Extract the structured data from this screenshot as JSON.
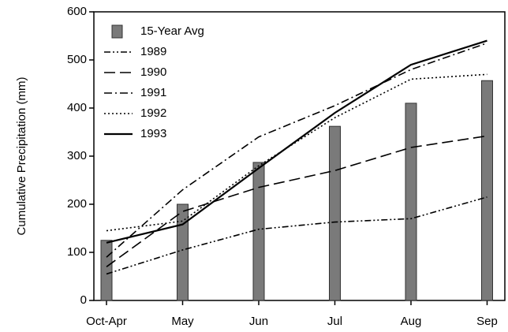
{
  "chart_data": {
    "type": "combo",
    "y_label": "Cumulative Precipitation (mm)",
    "categories": [
      "Oct-Apr",
      "May",
      "Jun",
      "Jul",
      "Aug",
      "Sep"
    ],
    "ylim": [
      0,
      600
    ],
    "yticks": [
      0,
      100,
      200,
      300,
      400,
      500,
      600
    ],
    "legend": "top-left",
    "series": [
      {
        "name": "15-Year Avg",
        "type": "bar",
        "color": "#7a7a7a",
        "values": [
          125,
          200,
          287,
          362,
          410,
          457
        ]
      },
      {
        "name": "1989",
        "type": "line",
        "style": "dash-dot-dot",
        "color": "#000000",
        "values": [
          55,
          105,
          148,
          163,
          170,
          215
        ]
      },
      {
        "name": "1990",
        "type": "line",
        "style": "long-dash",
        "color": "#000000",
        "values": [
          70,
          185,
          235,
          270,
          318,
          342
        ]
      },
      {
        "name": "1991",
        "type": "line",
        "style": "dash-dot",
        "color": "#000000",
        "values": [
          90,
          230,
          340,
          405,
          480,
          535
        ]
      },
      {
        "name": "1992",
        "type": "line",
        "style": "dotted",
        "color": "#000000",
        "values": [
          145,
          165,
          280,
          380,
          460,
          470
        ]
      },
      {
        "name": "1993",
        "type": "line",
        "style": "solid",
        "color": "#000000",
        "values": [
          120,
          158,
          275,
          390,
          490,
          540
        ]
      }
    ]
  }
}
